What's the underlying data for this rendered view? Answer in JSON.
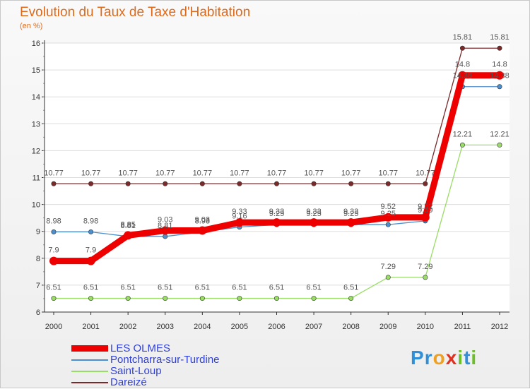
{
  "header": {
    "title": "Evolution du Taux de Taxe d'Habitation",
    "unit": "(en %)"
  },
  "brand": {
    "letters": [
      "P",
      "r",
      "o",
      "x",
      "i",
      "t",
      "i"
    ]
  },
  "chart_data": {
    "type": "line",
    "title": "Evolution du Taux de Taxe d'Habitation",
    "ylabel": "(en %)",
    "xlabel": "",
    "ylim": [
      6,
      16
    ],
    "yticks": [
      "6",
      "7",
      "8",
      "9",
      "10",
      "11",
      "12",
      "13",
      "14",
      "15",
      "16"
    ],
    "categories": [
      "2000",
      "2001",
      "2002",
      "2003",
      "2004",
      "2005",
      "2006",
      "2007",
      "2008",
      "2009",
      "2010",
      "2011",
      "2012"
    ],
    "legend_position": "bottom-left",
    "series": [
      {
        "name": "LES OLMES",
        "color": "#ee0000",
        "values": [
          7.9,
          7.9,
          8.85,
          9.03,
          9.03,
          9.33,
          9.33,
          9.33,
          9.33,
          9.52,
          9.52,
          14.8,
          14.8
        ],
        "labels": [
          "7.9",
          "7.9",
          "8.85",
          "9.03",
          "9.03",
          "9.33",
          "9.33",
          "9.33",
          "9.33",
          "9.52",
          "9.52",
          "14.8",
          "14.8"
        ]
      },
      {
        "name": "Pontcharra-sur-Turdine",
        "color": "#4d8fcc",
        "values": [
          8.98,
          8.98,
          8.81,
          8.81,
          8.98,
          9.16,
          9.25,
          9.25,
          9.25,
          9.25,
          9.39,
          14.38,
          14.38
        ],
        "labels": [
          "8.98",
          "8.98",
          "8.81",
          "8.81",
          "8.98",
          "9.16",
          "9.25",
          "9.25",
          "9.25",
          "9.25",
          "9.39",
          "14.38",
          "14.38"
        ]
      },
      {
        "name": "Saint-Loup",
        "color": "#99dd66",
        "values": [
          6.51,
          6.51,
          6.51,
          6.51,
          6.51,
          6.51,
          6.51,
          6.51,
          6.51,
          7.29,
          7.29,
          12.21,
          12.21
        ],
        "labels": [
          "6.51",
          "6.51",
          "6.51",
          "6.51",
          "6.51",
          "6.51",
          "6.51",
          "6.51",
          "6.51",
          "7.29",
          "7.29",
          "12.21",
          "12.21"
        ]
      },
      {
        "name": "Dareizé",
        "color": "#7a2a2a",
        "values": [
          10.77,
          10.77,
          10.77,
          10.77,
          10.77,
          10.77,
          10.77,
          10.77,
          10.77,
          10.77,
          10.77,
          15.81,
          15.81
        ],
        "labels": [
          "10.77",
          "10.77",
          "10.77",
          "10.77",
          "10.77",
          "10.77",
          "10.77",
          "10.77",
          "10.77",
          "10.77",
          "10.77",
          "15.81",
          "15.81"
        ]
      }
    ]
  }
}
